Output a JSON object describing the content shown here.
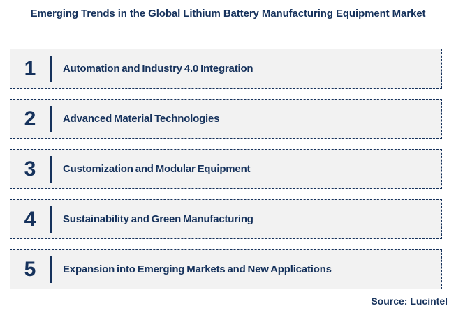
{
  "title": "Emerging Trends in the Global Lithium Battery Manufacturing Equipment Market",
  "trends": [
    {
      "number": "1",
      "label": "Automation and Industry 4.0 Integration"
    },
    {
      "number": "2",
      "label": "Advanced Material Technologies"
    },
    {
      "number": "3",
      "label": "Customization and Modular Equipment"
    },
    {
      "number": "4",
      "label": "Sustainability and Green Manufacturing"
    },
    {
      "number": "5",
      "label": "Expansion into Emerging Markets and New Applications"
    }
  ],
  "source": "Source: Lucintel",
  "colors": {
    "navy": "#16325C",
    "box_fill": "#F2F2F2",
    "background": "#FFFFFF"
  }
}
